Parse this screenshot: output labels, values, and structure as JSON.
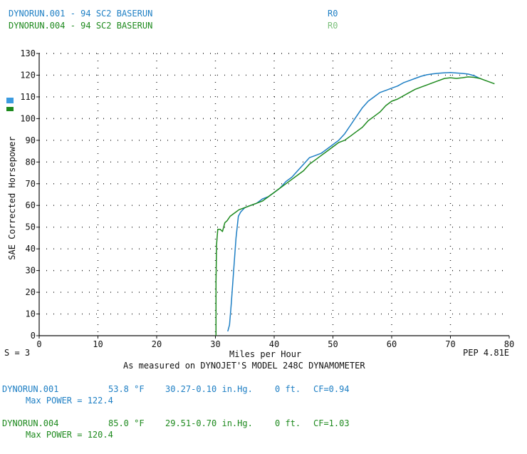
{
  "header": {
    "runs": [
      {
        "label": "DYNORUN.001 - 94 SC2 BASERUN",
        "code": "R0",
        "color": "#1e7fc4"
      },
      {
        "label": "DYNORUN.004 - 94 SC2 BASERUN",
        "code": "R0",
        "color": "#3a9c3a"
      }
    ]
  },
  "footer": {
    "smoothing": "S = 3",
    "pep": "PEP 4.81E",
    "measured": "As measured on DYNOJET'S MODEL 248C DYNAMOMETER"
  },
  "runs_info": [
    {
      "name": "DYNORUN.001",
      "temp": "53.8 °F",
      "baro": "30.27-0.10 in.Hg.",
      "alt": "0 ft.",
      "cf": "CF=0.94",
      "max_power": "Max POWER = 122.4"
    },
    {
      "name": "DYNORUN.004",
      "temp": "85.0 °F",
      "baro": "29.51-0.70 in.Hg.",
      "alt": "0 ft.",
      "cf": "CF=1.03",
      "max_power": "Max POWER = 120.4"
    }
  ],
  "chart_data": {
    "type": "line",
    "xlabel": "Miles per Hour",
    "ylabel": "SAE Corrected Horsepower",
    "xlim": [
      0,
      80
    ],
    "ylim": [
      0,
      130
    ],
    "x_ticks": [
      0,
      10,
      20,
      30,
      40,
      50,
      60,
      70,
      80
    ],
    "y_ticks": [
      0,
      10,
      20,
      30,
      40,
      50,
      60,
      70,
      80,
      90,
      100,
      110,
      120,
      130
    ],
    "grid": true,
    "legend": "left",
    "series": [
      {
        "name": "",
        "color": "#1e7fc4",
        "points": [
          [
            32.1,
            2
          ],
          [
            32.4,
            5
          ],
          [
            32.7,
            15
          ],
          [
            33.1,
            30
          ],
          [
            33.5,
            45
          ],
          [
            33.9,
            55
          ],
          [
            34.3,
            57
          ],
          [
            35,
            59
          ],
          [
            36,
            60
          ],
          [
            37,
            61
          ],
          [
            38,
            63
          ],
          [
            39,
            64
          ],
          [
            40,
            66
          ],
          [
            41,
            68
          ],
          [
            42,
            71
          ],
          [
            43,
            73
          ],
          [
            44,
            76
          ],
          [
            45,
            79
          ],
          [
            46,
            82
          ],
          [
            47,
            83
          ],
          [
            48,
            84
          ],
          [
            49,
            86
          ],
          [
            50,
            88
          ],
          [
            51,
            90
          ],
          [
            52,
            93
          ],
          [
            53,
            97
          ],
          [
            54,
            101
          ],
          [
            55,
            105
          ],
          [
            56,
            108
          ],
          [
            57,
            110
          ],
          [
            58,
            112
          ],
          [
            59,
            113
          ],
          [
            60,
            114
          ],
          [
            61,
            115
          ],
          [
            62,
            116.5
          ],
          [
            63,
            117.5
          ],
          [
            64,
            118.5
          ],
          [
            65,
            119.5
          ],
          [
            66,
            120.2
          ],
          [
            67,
            120.6
          ],
          [
            68,
            120.9
          ],
          [
            69,
            121.1
          ],
          [
            70,
            121.2
          ],
          [
            71,
            121
          ],
          [
            72,
            120.8
          ],
          [
            73,
            120.5
          ],
          [
            74,
            119.8
          ],
          [
            75,
            118.5
          ]
        ]
      },
      {
        "name": "",
        "color": "#1e8a1e",
        "points": [
          [
            30.1,
            0
          ],
          [
            30.1,
            25
          ],
          [
            30.2,
            42
          ],
          [
            30.4,
            49
          ],
          [
            30.8,
            49
          ],
          [
            31.2,
            48
          ],
          [
            31.6,
            52
          ],
          [
            32,
            53
          ],
          [
            32.5,
            55
          ],
          [
            33,
            56
          ],
          [
            33.5,
            57
          ],
          [
            34,
            58
          ],
          [
            35,
            59
          ],
          [
            36,
            60
          ],
          [
            37,
            61
          ],
          [
            38,
            62
          ],
          [
            39,
            64
          ],
          [
            40,
            66
          ],
          [
            41,
            68
          ],
          [
            42,
            70
          ],
          [
            43,
            72
          ],
          [
            44,
            74
          ],
          [
            45,
            76
          ],
          [
            46,
            79
          ],
          [
            47,
            81
          ],
          [
            48,
            83
          ],
          [
            49,
            85
          ],
          [
            50,
            87
          ],
          [
            51,
            89
          ],
          [
            52,
            90
          ],
          [
            53,
            92
          ],
          [
            54,
            94
          ],
          [
            55,
            96
          ],
          [
            56,
            99
          ],
          [
            57,
            101
          ],
          [
            58,
            103
          ],
          [
            59,
            106
          ],
          [
            60,
            108
          ],
          [
            61,
            109
          ],
          [
            62,
            110.5
          ],
          [
            63,
            112
          ],
          [
            64,
            113.5
          ],
          [
            65,
            114.5
          ],
          [
            66,
            115.5
          ],
          [
            67,
            116.5
          ],
          [
            68,
            117.5
          ],
          [
            69,
            118.5
          ],
          [
            70,
            118.8
          ],
          [
            71,
            118.5
          ],
          [
            72,
            118.8
          ],
          [
            73,
            119.2
          ],
          [
            74,
            119
          ],
          [
            75,
            118.5
          ],
          [
            76,
            117.5
          ],
          [
            77,
            116.5
          ],
          [
            77.5,
            116
          ]
        ]
      }
    ]
  }
}
